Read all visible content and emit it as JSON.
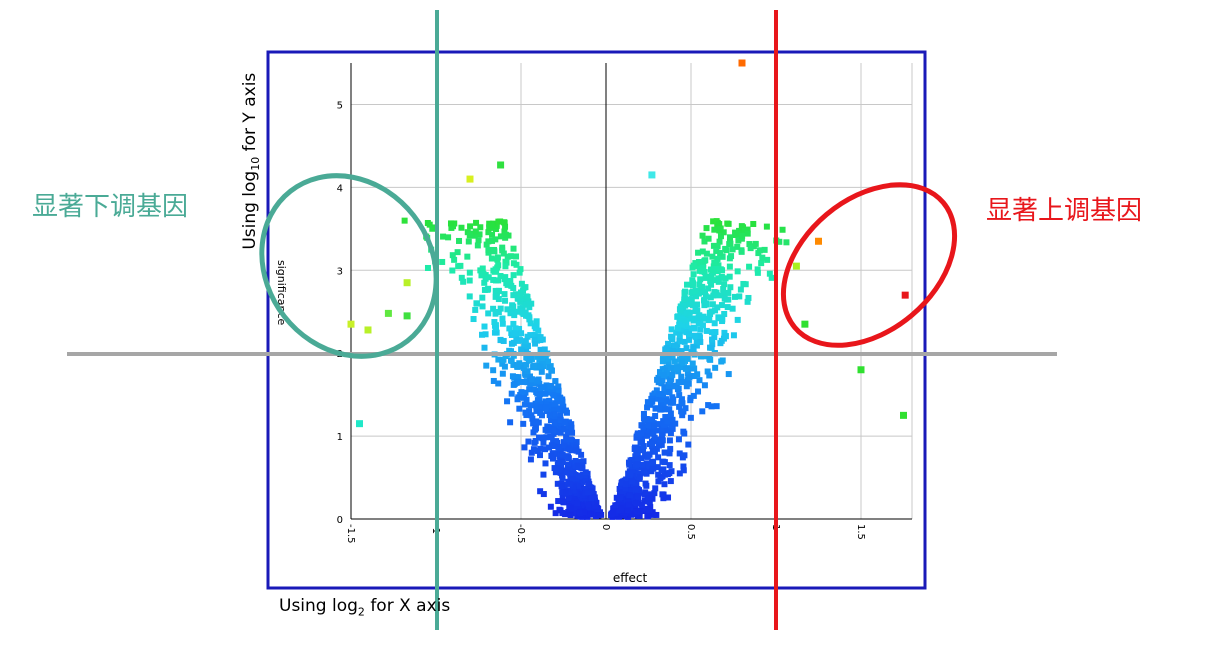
{
  "annotations": {
    "down_label": "显著下调基因",
    "up_label": "显著上调基因",
    "down_color": "#4aaa96",
    "up_color": "#e8161b",
    "threshold_line_color": "#a6a6a6",
    "x_caption_prefix": "Using log",
    "x_caption_sub": "2",
    "x_caption_suffix": " for X axis",
    "y_caption_prefix": "Using log",
    "y_caption_sub": "10",
    "y_caption_suffix": " for Y axis"
  },
  "chart_data": {
    "type": "scatter",
    "title": "",
    "xlabel": "effect",
    "ylabel": "significance",
    "xlim": [
      -1.5,
      1.8
    ],
    "ylim": [
      0,
      5.5
    ],
    "xticks": [
      -1.5,
      -1,
      -0.5,
      0,
      0.5,
      1,
      1.5
    ],
    "xtick_labels": [
      "-1.5",
      "-1",
      "-0.5",
      "0",
      "0.5",
      "1",
      "1.5"
    ],
    "yticks": [
      0,
      1,
      2,
      3,
      4,
      5
    ],
    "ytick_labels": [
      "0",
      "1",
      "2",
      "3",
      "4",
      "5"
    ],
    "grid": true,
    "frame_color": "#1a1ab8",
    "thresholds": {
      "x_down": -1,
      "x_up": 1,
      "y": 2
    },
    "color_scale": "blue (low significance) → cyan → green → yellow → orange (high significance)",
    "notable_points": [
      {
        "x": 0.8,
        "y": 5.5,
        "color": "#ff6a00"
      },
      {
        "x": 1.25,
        "y": 3.35,
        "color": "#ff8a00"
      },
      {
        "x": 1.76,
        "y": 2.7,
        "color": "#e8161b"
      },
      {
        "x": 1.12,
        "y": 3.05,
        "color": "#a8f020"
      },
      {
        "x": 1.17,
        "y": 2.35,
        "color": "#30e030"
      },
      {
        "x": -1.5,
        "y": 2.35,
        "color": "#c8f028"
      },
      {
        "x": -1.4,
        "y": 2.28,
        "color": "#b8f028"
      },
      {
        "x": -1.17,
        "y": 2.85,
        "color": "#b8f028"
      },
      {
        "x": -1.28,
        "y": 2.48,
        "color": "#60e840"
      },
      {
        "x": -1.17,
        "y": 2.45,
        "color": "#40e040"
      },
      {
        "x": -0.8,
        "y": 4.1,
        "color": "#d8f020"
      },
      {
        "x": -0.62,
        "y": 4.27,
        "color": "#30e040"
      },
      {
        "x": 0.27,
        "y": 4.15,
        "color": "#40e8e8"
      },
      {
        "x": 1.5,
        "y": 1.8,
        "color": "#30e030"
      },
      {
        "x": 1.75,
        "y": 1.25,
        "color": "#30e030"
      },
      {
        "x": -1.45,
        "y": 1.15,
        "color": "#20e8c8"
      }
    ]
  }
}
